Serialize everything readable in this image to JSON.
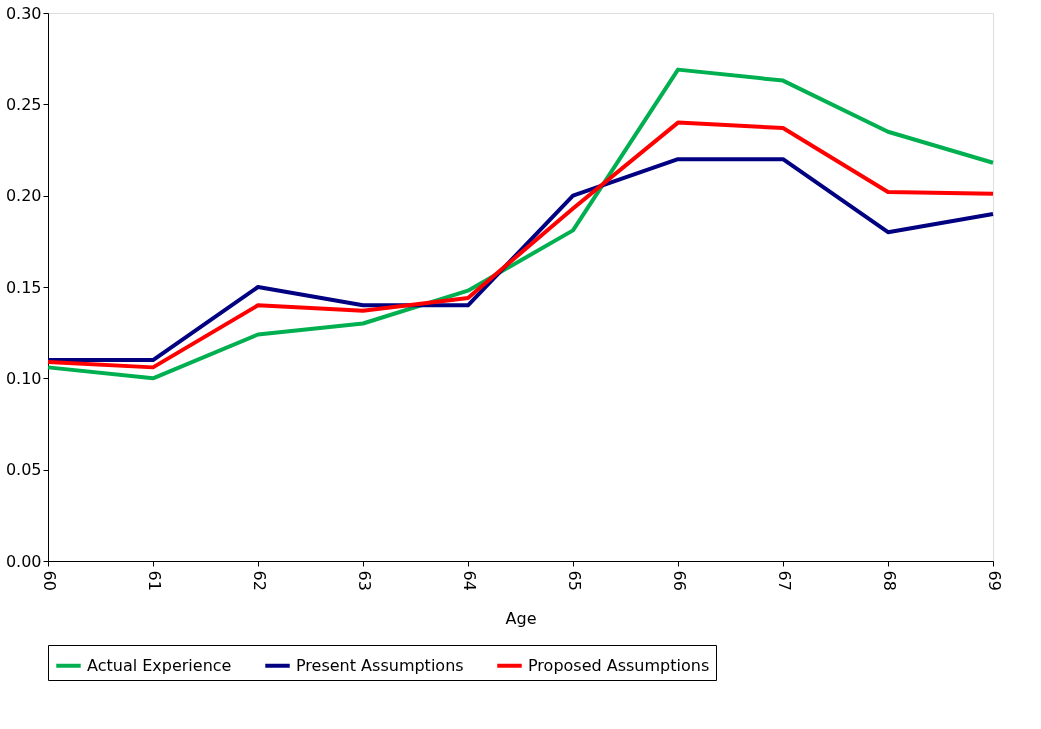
{
  "chart_data": {
    "type": "line",
    "xlabel": "Age",
    "categories": [
      "60",
      "61",
      "62",
      "63",
      "64",
      "65",
      "66",
      "67",
      "68",
      "69"
    ],
    "series": [
      {
        "name": "Actual Experience",
        "color": "#00b050",
        "values": [
          0.106,
          0.1,
          0.124,
          0.13,
          0.148,
          0.181,
          0.269,
          0.263,
          0.235,
          0.218
        ]
      },
      {
        "name": "Present Assumptions",
        "color": "#000080",
        "values": [
          0.11,
          0.11,
          0.15,
          0.14,
          0.14,
          0.2,
          0.22,
          0.22,
          0.18,
          0.19
        ]
      },
      {
        "name": "Proposed Assumptions",
        "color": "#ff0000",
        "values": [
          0.109,
          0.106,
          0.14,
          0.137,
          0.144,
          0.193,
          0.24,
          0.237,
          0.202,
          0.201
        ]
      }
    ],
    "ylim": [
      0,
      0.3
    ],
    "yticks": [
      {
        "value": 0,
        "label": "0.00"
      },
      {
        "value": 0.05,
        "label": "0.05"
      },
      {
        "value": 0.1,
        "label": "0.10"
      },
      {
        "value": 0.15,
        "label": "0.15"
      },
      {
        "value": 0.2,
        "label": "0.20"
      },
      {
        "value": 0.25,
        "label": "0.25"
      },
      {
        "value": 0.3,
        "label": "0.30"
      }
    ],
    "grid": false,
    "legend": "bottom",
    "marker": "none",
    "line_style": "solid"
  }
}
